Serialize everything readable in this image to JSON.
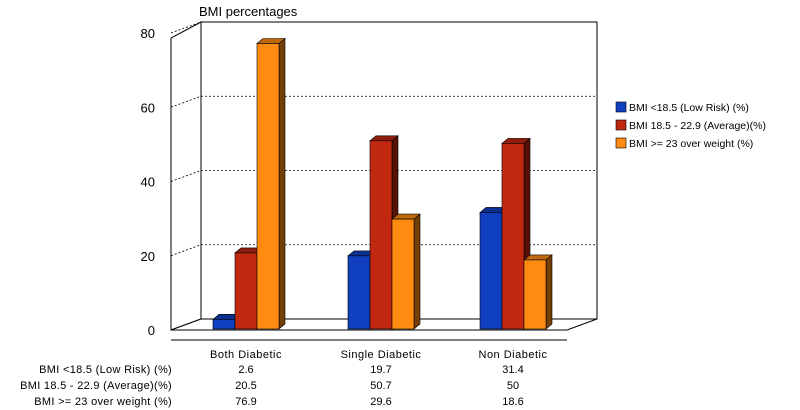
{
  "chart_data": {
    "type": "bar",
    "title": "BMI percentages",
    "categories": [
      "Both Diabetic",
      "Single Diabetic",
      "Non Diabetic"
    ],
    "series": [
      {
        "name": "BMI <18.5 (Low Risk) (%)",
        "values": [
          2.6,
          19.7,
          31.4
        ],
        "color": "#1040c0"
      },
      {
        "name": "BMI 18.5 - 22.9 (Average)(%)",
        "values": [
          20.5,
          50.7,
          50
        ],
        "color": "#c02810"
      },
      {
        "name": "BMI >= 23 over weight (%)",
        "values": [
          76.9,
          29.6,
          18.6
        ],
        "color": "#ff8c10"
      }
    ],
    "table_rows": [
      {
        "label": "BMI <18.5 (Low Risk) (%)",
        "cells": [
          "2.6",
          "19.7",
          "31.4"
        ]
      },
      {
        "label": "BMI 18.5 - 22.9 (Average)(%)",
        "cells": [
          "20.5",
          "50.7",
          "50"
        ]
      },
      {
        "label": "BMI >= 23 over weight (%)",
        "cells": [
          "76.9",
          "29.6",
          "18.6"
        ]
      }
    ],
    "ylim": [
      0,
      80
    ],
    "yticks": [
      "0",
      "20",
      "40",
      "60",
      "80"
    ],
    "grid": true,
    "legend": "right"
  }
}
